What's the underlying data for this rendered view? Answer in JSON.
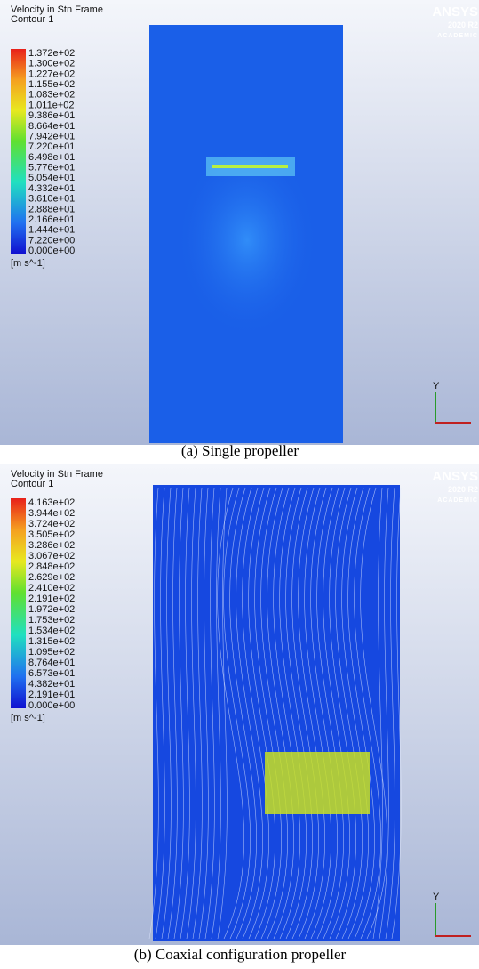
{
  "panels": [
    {
      "title": [
        "Velocity in Stn Frame",
        "Contour 1"
      ],
      "legend_labels": [
        "1.372e+02",
        "1.300e+02",
        "1.227e+02",
        "1.155e+02",
        "1.083e+02",
        "1.011e+02",
        "9.386e+01",
        "8.664e+01",
        "7.942e+01",
        "7.220e+01",
        "6.498e+01",
        "5.776e+01",
        "5.054e+01",
        "4.332e+01",
        "3.610e+01",
        "2.888e+01",
        "2.166e+01",
        "1.444e+01",
        "7.220e+00",
        "0.000e+00"
      ],
      "unit": "[m s^-1]",
      "logo": {
        "name": "ANSYS",
        "version": "2020 R2",
        "edition": "ACADEMIC"
      },
      "axis_label": "Y",
      "caption": "(a) Single propeller"
    },
    {
      "title": [
        "Velocity in Stn Frame",
        "Contour 1"
      ],
      "legend_labels": [
        "4.163e+02",
        "3.944e+02",
        "3.724e+02",
        "3.505e+02",
        "3.286e+02",
        "3.067e+02",
        "2.848e+02",
        "2.629e+02",
        "2.410e+02",
        "2.191e+02",
        "1.972e+02",
        "1.753e+02",
        "1.534e+02",
        "1.315e+02",
        "1.095e+02",
        "8.764e+01",
        "6.573e+01",
        "4.382e+01",
        "2.191e+01",
        "0.000e+00"
      ],
      "unit": "[m s^-1]",
      "logo": {
        "name": "ANSYS",
        "version": "2020 R2",
        "edition": "ACADEMIC"
      },
      "axis_label": "Y",
      "caption": "(b) Coaxial configuration propeller"
    }
  ]
}
